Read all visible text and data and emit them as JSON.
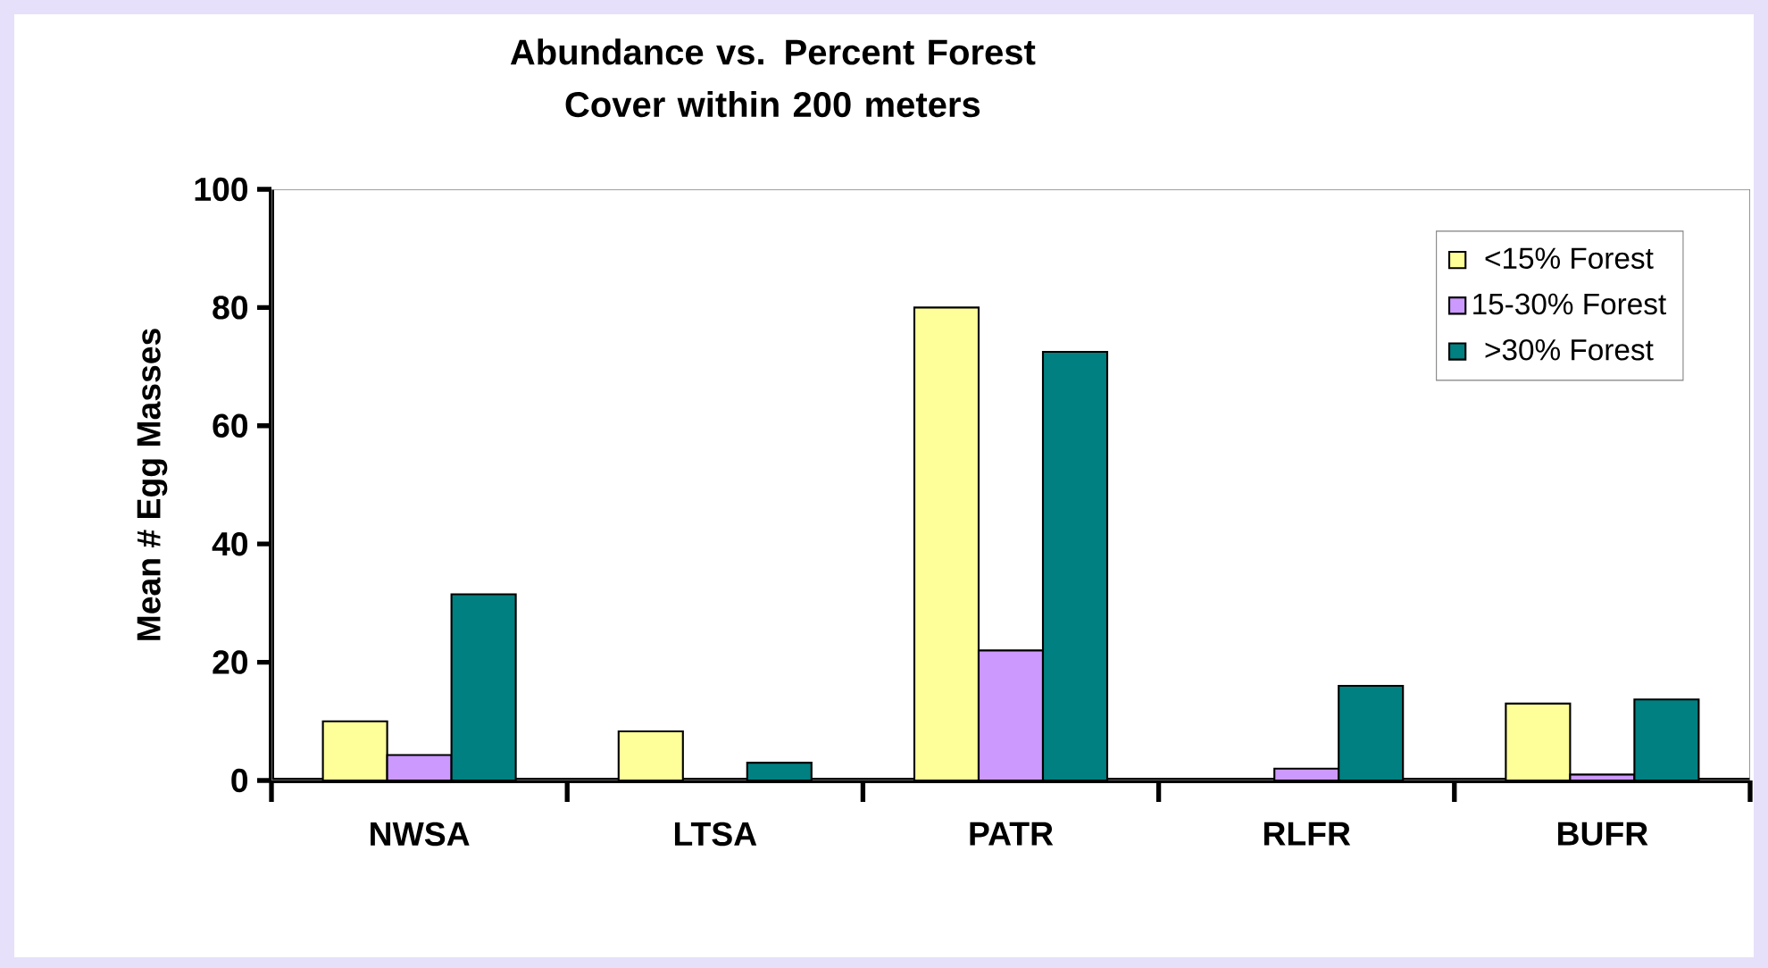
{
  "chart_data": {
    "type": "bar",
    "title": "Abundance vs. Percent Forest Cover within 200 meters",
    "ylabel": "Mean # Egg Masses",
    "categories": [
      "NWSA",
      "LTSA",
      "PATR",
      "RLFR",
      "BUFR"
    ],
    "series": [
      {
        "name": "<15% Forest",
        "color": "#ffff99",
        "values": [
          10,
          8.3,
          80,
          null,
          13
        ]
      },
      {
        "name": "15-30% Forest",
        "color": "#cc99ff",
        "values": [
          4.3,
          null,
          22,
          2,
          1
        ]
      },
      {
        "name": ">30% Forest",
        "color": "#008080",
        "values": [
          31.5,
          3,
          72.5,
          16,
          13.7
        ]
      }
    ],
    "ylim": [
      0,
      100
    ],
    "yticks": [
      0,
      20,
      40,
      60,
      80,
      100
    ],
    "legend": "top right"
  }
}
